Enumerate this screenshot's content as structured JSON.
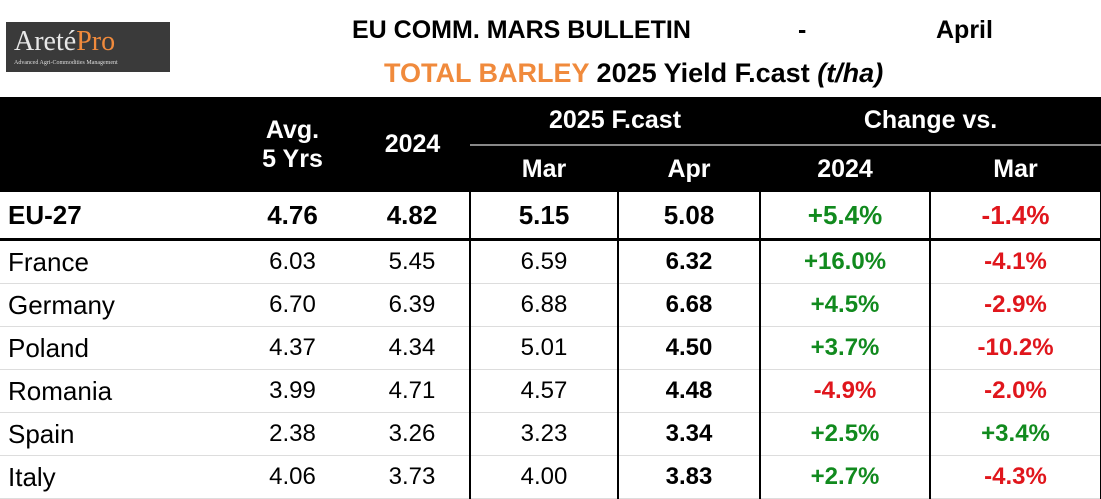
{
  "logo": {
    "name": "Areté",
    "accent": "Pro",
    "tagline": "Advanced Agri-Commodities Management"
  },
  "header": {
    "title": "EU COMM. MARS BULLETIN",
    "separator": "-",
    "month": "April",
    "crop": "TOTAL BARLEY",
    "subtitle": "2025 Yield F.cast",
    "unit": "(t/ha)"
  },
  "table": {
    "columns": {
      "avg_line1": "Avg.",
      "avg_line2": "5 Yrs",
      "prev_year": "2024",
      "forecast_group": "2025 F.cast",
      "forecast_mar": "Mar",
      "forecast_apr": "Apr",
      "change_group": "Change vs.",
      "change_prev_year": "2024",
      "change_mar": "Mar"
    },
    "rows": [
      [
        "EU-27",
        "4.76",
        "4.82",
        "5.15",
        "5.08",
        "+5.4%",
        "-1.4%"
      ],
      [
        "France",
        "6.03",
        "5.45",
        "6.59",
        "6.32",
        "+16.0%",
        "-4.1%"
      ],
      [
        "Germany",
        "6.70",
        "6.39",
        "6.88",
        "6.68",
        "+4.5%",
        "-2.9%"
      ],
      [
        "Poland",
        "4.37",
        "4.34",
        "5.01",
        "4.50",
        "+3.7%",
        "-10.2%"
      ],
      [
        "Romania",
        "3.99",
        "4.71",
        "4.57",
        "4.48",
        "-4.9%",
        "-2.0%"
      ],
      [
        "Spain",
        "2.38",
        "3.26",
        "3.23",
        "3.34",
        "+2.5%",
        "+3.4%"
      ],
      [
        "Italy",
        "4.06",
        "3.73",
        "4.00",
        "3.83",
        "+2.7%",
        "-4.3%"
      ]
    ]
  }
}
